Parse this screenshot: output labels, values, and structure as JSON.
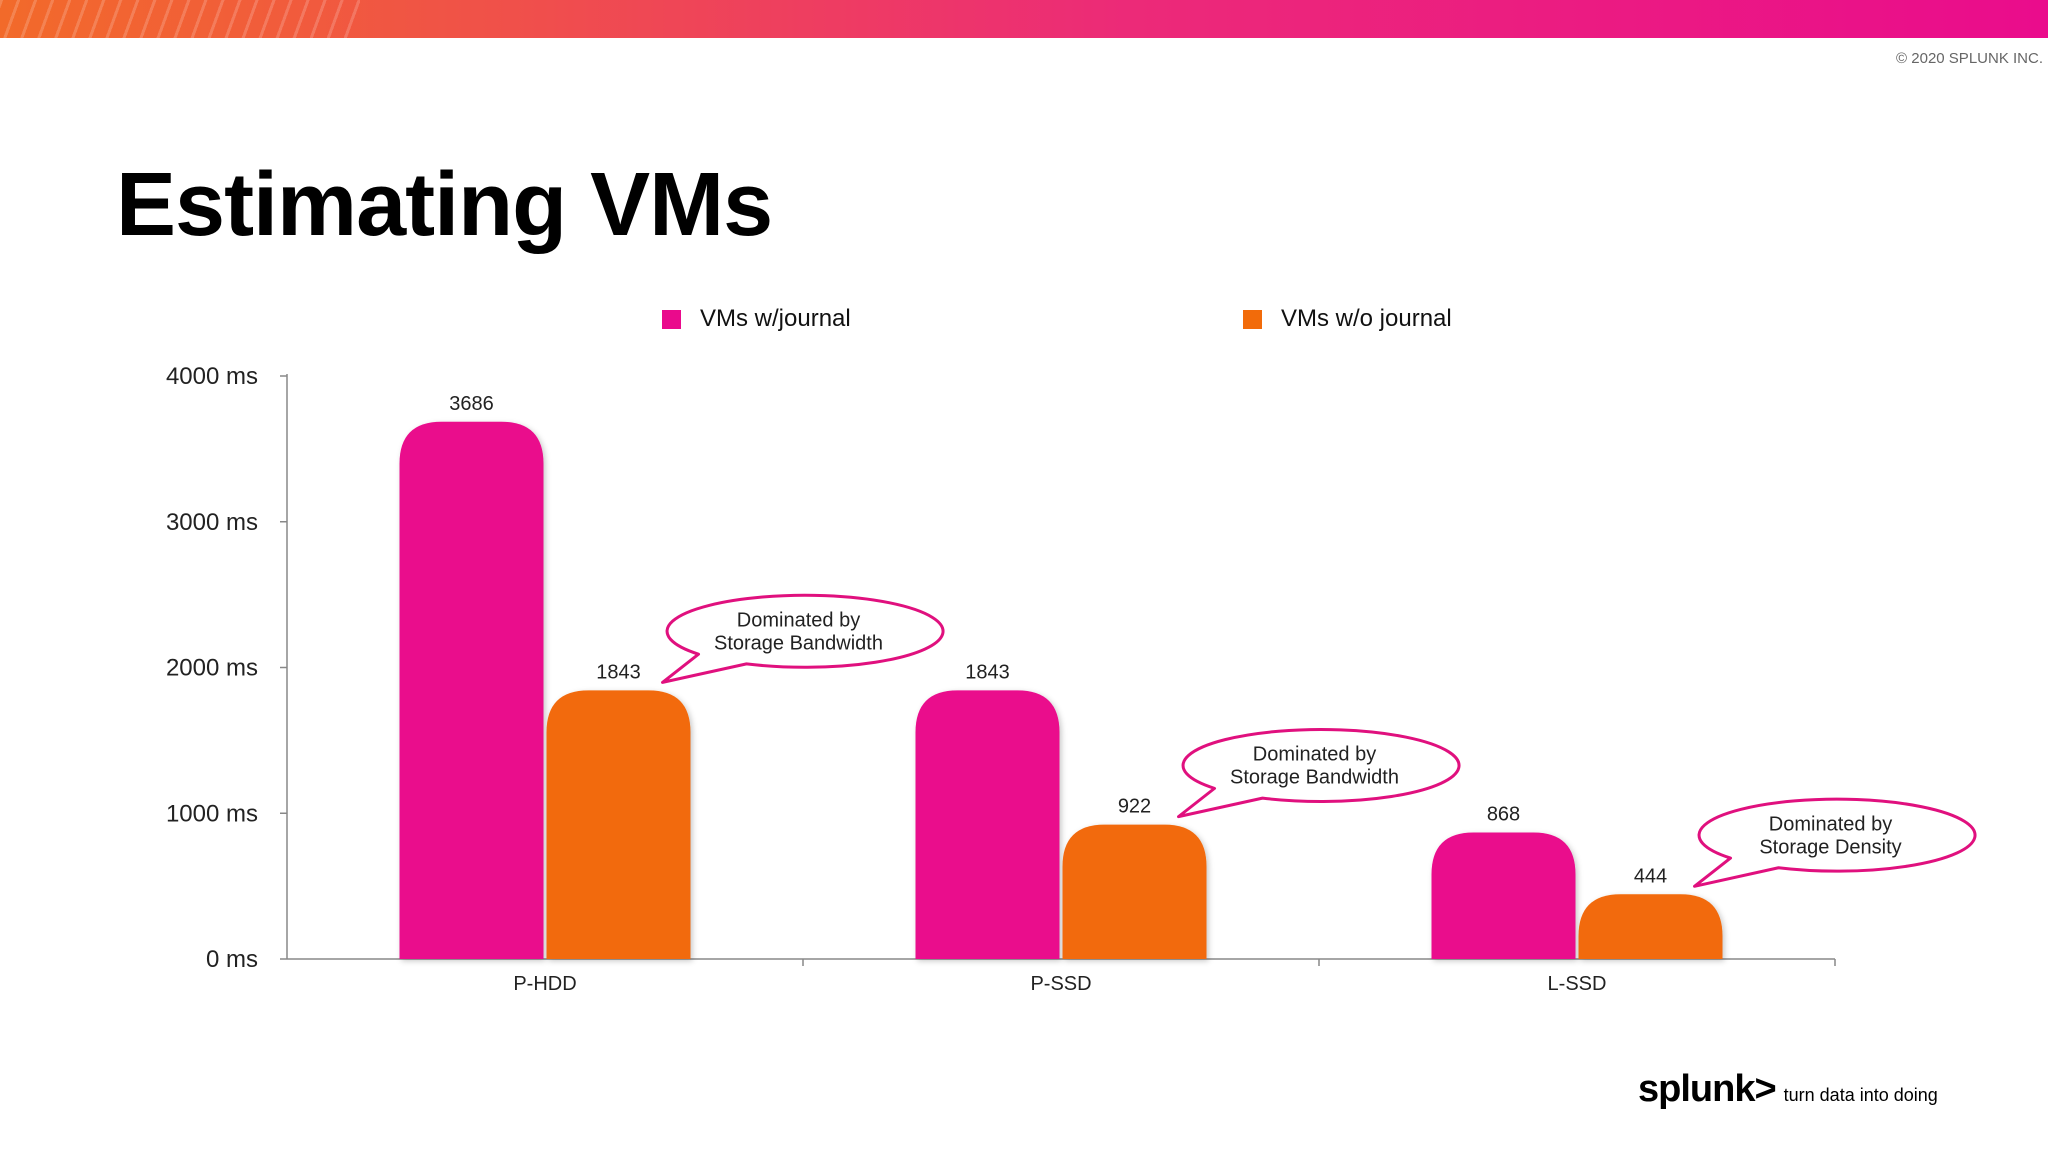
{
  "copyright": "© 2020 SPLUNK INC.",
  "title": "Estimating VMs",
  "colors": {
    "with_journal": "#ea0a8c",
    "without_journal": "#f26b0a",
    "callout_stroke": "#e0107e"
  },
  "chart_data": {
    "type": "bar",
    "categories": [
      "P-HDD",
      "P-SSD",
      "L-SSD"
    ],
    "series": [
      {
        "name": "VMs w/journal",
        "values": [
          3686,
          1843,
          868
        ]
      },
      {
        "name": "VMs w/o journal",
        "values": [
          1843,
          922,
          444
        ]
      }
    ],
    "data_labels": [
      [
        "3686",
        "1843",
        "868"
      ],
      [
        "1843",
        "922",
        "444"
      ]
    ],
    "yticks": [
      0,
      1000,
      2000,
      3000,
      4000
    ],
    "ytick_labels": [
      "0 ms",
      "1000 ms",
      "2000 ms",
      "3000 ms",
      "4000 ms"
    ],
    "ylim": [
      0,
      4000
    ],
    "legend_position": "top",
    "grid": false,
    "annotations": [
      {
        "category": "P-HDD",
        "series": 1,
        "line1": "Dominated by",
        "line2": "Storage Bandwidth"
      },
      {
        "category": "P-SSD",
        "series": 1,
        "line1": "Dominated by",
        "line2": "Storage Bandwidth"
      },
      {
        "category": "L-SSD",
        "series": 1,
        "line1": "Dominated by",
        "line2": "Storage Density"
      }
    ]
  },
  "branding": {
    "logo": "splunk>",
    "tagline": "turn data into doing"
  }
}
